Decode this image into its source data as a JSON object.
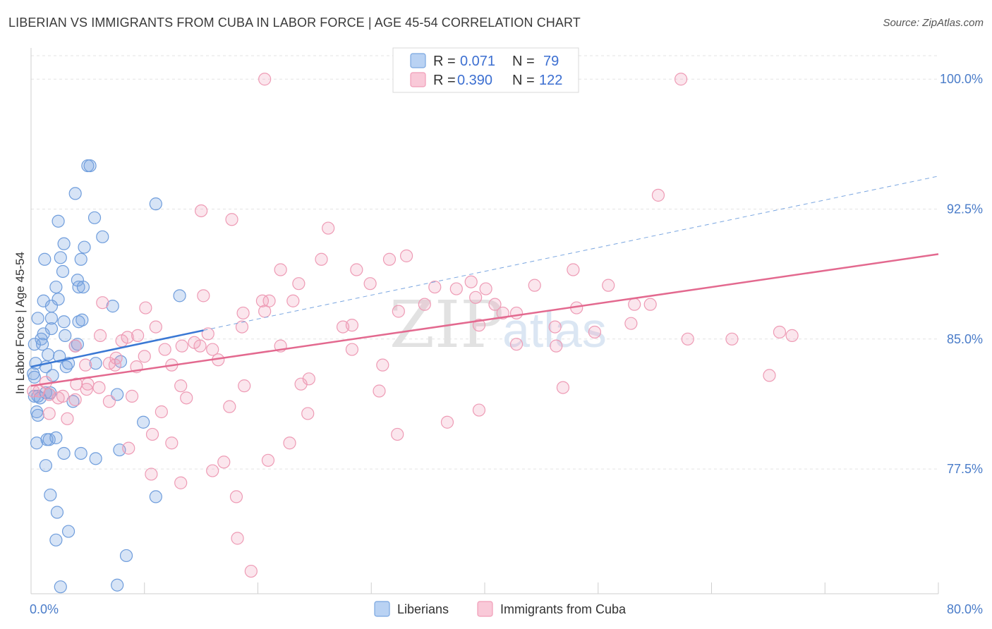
{
  "title": "LIBERIAN VS IMMIGRANTS FROM CUBA IN LABOR FORCE | AGE 45-54 CORRELATION CHART",
  "source": "Source: ZipAtlas.com",
  "watermark": {
    "zip": "ZIP",
    "atlas": "atlas"
  },
  "legend": {
    "series1": {
      "r_label": "R = ",
      "r_value": "0.071",
      "n_label": "N = ",
      "n_value": "79"
    },
    "series2": {
      "r_label": "R = ",
      "r_value": "0.390",
      "n_label": "N = ",
      "n_value": "122"
    }
  },
  "chart_data": {
    "type": "scatter",
    "title": "LIBERIAN VS IMMIGRANTS FROM CUBA IN LABOR FORCE | AGE 45-54 CORRELATION CHART",
    "xlabel": "",
    "ylabel": "In Labor Force | Age 45-54",
    "xlim": [
      0,
      80
    ],
    "ylim": [
      70.3,
      101.8
    ],
    "x_tick_labels": [
      {
        "value": 0,
        "label": "0.0%"
      },
      {
        "value": 80,
        "label": "80.0%"
      }
    ],
    "y_tick_labels": [
      {
        "value": 77.5,
        "label": "77.5%"
      },
      {
        "value": 85.0,
        "label": "85.0%"
      },
      {
        "value": 92.5,
        "label": "92.5%"
      },
      {
        "value": 100.0,
        "label": "100.0%"
      }
    ],
    "grid": true,
    "colors": {
      "Liberians": "#7aa6e0",
      "Immigrants from Cuba": "#f19db8",
      "blue_line": "#3a78d4",
      "pink_line": "#e3698f"
    },
    "series": [
      {
        "name": "Liberians",
        "r": 0.071,
        "n": 79,
        "trend": {
          "x0": 0.0,
          "y0": 83.4,
          "x1": 15.2,
          "y1": 85.5,
          "dashed_to_x": 80,
          "dashed_to_y": 94.4
        },
        "points": [
          [
            5.0,
            95.0
          ],
          [
            5.2,
            95.0
          ],
          [
            3.9,
            93.4
          ],
          [
            11.0,
            92.8
          ],
          [
            2.4,
            91.8
          ],
          [
            5.6,
            92.0
          ],
          [
            6.3,
            90.9
          ],
          [
            2.9,
            90.5
          ],
          [
            4.7,
            90.3
          ],
          [
            1.2,
            89.6
          ],
          [
            2.6,
            89.7
          ],
          [
            4.4,
            89.6
          ],
          [
            2.8,
            88.9
          ],
          [
            4.1,
            88.4
          ],
          [
            2.2,
            88.0
          ],
          [
            4.2,
            88.0
          ],
          [
            4.6,
            88.0
          ],
          [
            13.1,
            87.5
          ],
          [
            0.6,
            86.2
          ],
          [
            1.1,
            87.2
          ],
          [
            2.4,
            87.3
          ],
          [
            1.8,
            86.9
          ],
          [
            7.2,
            86.9
          ],
          [
            2.9,
            86.0
          ],
          [
            4.2,
            86.0
          ],
          [
            4.5,
            86.1
          ],
          [
            1.8,
            86.2
          ],
          [
            1.8,
            85.6
          ],
          [
            1.1,
            85.3
          ],
          [
            0.9,
            85.0
          ],
          [
            1.0,
            84.7
          ],
          [
            0.3,
            84.7
          ],
          [
            3.0,
            85.2
          ],
          [
            3.9,
            84.6
          ],
          [
            4.1,
            84.7
          ],
          [
            0.4,
            83.6
          ],
          [
            1.5,
            84.1
          ],
          [
            2.5,
            84.0
          ],
          [
            1.3,
            83.4
          ],
          [
            3.1,
            83.4
          ],
          [
            3.3,
            83.6
          ],
          [
            5.7,
            83.6
          ],
          [
            7.9,
            83.7
          ],
          [
            0.2,
            83.0
          ],
          [
            0.3,
            82.8
          ],
          [
            1.9,
            82.9
          ],
          [
            0.3,
            81.7
          ],
          [
            0.6,
            81.7
          ],
          [
            0.8,
            81.6
          ],
          [
            1.3,
            81.9
          ],
          [
            1.6,
            81.8
          ],
          [
            1.7,
            81.9
          ],
          [
            3.7,
            81.4
          ],
          [
            7.6,
            81.8
          ],
          [
            0.5,
            80.8
          ],
          [
            0.6,
            80.6
          ],
          [
            9.9,
            80.2
          ],
          [
            1.4,
            79.2
          ],
          [
            1.6,
            79.2
          ],
          [
            2.2,
            79.3
          ],
          [
            0.5,
            79.0
          ],
          [
            2.9,
            78.4
          ],
          [
            4.4,
            78.4
          ],
          [
            5.7,
            78.1
          ],
          [
            7.8,
            78.6
          ],
          [
            1.3,
            77.7
          ],
          [
            1.7,
            76.0
          ],
          [
            11.0,
            75.9
          ],
          [
            2.3,
            75.0
          ],
          [
            3.3,
            73.9
          ],
          [
            2.2,
            73.4
          ],
          [
            8.4,
            72.5
          ],
          [
            2.6,
            70.7
          ],
          [
            7.6,
            70.8
          ]
        ]
      },
      {
        "name": "Immigrants from Cuba",
        "r": 0.39,
        "n": 122,
        "trend": {
          "x0": 0.0,
          "y0": 82.3,
          "x1": 80.0,
          "y1": 89.9
        },
        "points": [
          [
            20.6,
            100.0
          ],
          [
            57.3,
            100.0
          ],
          [
            55.3,
            93.3
          ],
          [
            15.0,
            92.4
          ],
          [
            17.7,
            91.9
          ],
          [
            26.2,
            91.4
          ],
          [
            22.0,
            89.0
          ],
          [
            25.6,
            89.6
          ],
          [
            28.7,
            89.0
          ],
          [
            31.6,
            89.6
          ],
          [
            33.1,
            89.8
          ],
          [
            47.8,
            89.0
          ],
          [
            23.6,
            88.2
          ],
          [
            29.9,
            88.2
          ],
          [
            35.6,
            88.0
          ],
          [
            37.5,
            87.9
          ],
          [
            38.8,
            88.3
          ],
          [
            40.1,
            87.9
          ],
          [
            44.4,
            88.1
          ],
          [
            50.9,
            88.1
          ],
          [
            15.2,
            87.5
          ],
          [
            20.4,
            87.2
          ],
          [
            21.0,
            87.2
          ],
          [
            23.1,
            87.2
          ],
          [
            32.4,
            86.6
          ],
          [
            34.7,
            87.0
          ],
          [
            39.2,
            87.4
          ],
          [
            40.9,
            87.0
          ],
          [
            6.3,
            87.1
          ],
          [
            10.1,
            86.8
          ],
          [
            20.6,
            86.6
          ],
          [
            18.7,
            86.5
          ],
          [
            41.6,
            86.5
          ],
          [
            42.8,
            86.5
          ],
          [
            48.1,
            86.8
          ],
          [
            53.2,
            87.0
          ],
          [
            54.6,
            87.0
          ],
          [
            11.0,
            85.7
          ],
          [
            18.6,
            85.7
          ],
          [
            27.5,
            85.7
          ],
          [
            28.3,
            85.8
          ],
          [
            39.5,
            85.8
          ],
          [
            46.2,
            85.7
          ],
          [
            49.7,
            85.4
          ],
          [
            52.9,
            85.9
          ],
          [
            66.0,
            85.4
          ],
          [
            57.9,
            85.0
          ],
          [
            61.8,
            85.0
          ],
          [
            67.1,
            85.2
          ],
          [
            6.1,
            85.2
          ],
          [
            8.5,
            85.1
          ],
          [
            9.4,
            85.2
          ],
          [
            15.6,
            85.3
          ],
          [
            14.4,
            84.8
          ],
          [
            8.0,
            84.9
          ],
          [
            22.0,
            84.6
          ],
          [
            11.8,
            84.4
          ],
          [
            13.3,
            84.6
          ],
          [
            14.9,
            84.6
          ],
          [
            16.0,
            84.4
          ],
          [
            28.3,
            84.4
          ],
          [
            42.8,
            84.7
          ],
          [
            46.3,
            84.6
          ],
          [
            3.9,
            84.6
          ],
          [
            7.5,
            83.9
          ],
          [
            10.0,
            84.0
          ],
          [
            16.5,
            83.8
          ],
          [
            6.9,
            83.6
          ],
          [
            4.8,
            83.5
          ],
          [
            7.4,
            83.5
          ],
          [
            9.3,
            83.4
          ],
          [
            12.4,
            83.5
          ],
          [
            31.0,
            83.5
          ],
          [
            1.3,
            82.5
          ],
          [
            4.0,
            82.4
          ],
          [
            5.0,
            82.4
          ],
          [
            6.0,
            82.2
          ],
          [
            4.9,
            82.1
          ],
          [
            13.2,
            82.3
          ],
          [
            18.8,
            82.3
          ],
          [
            23.8,
            82.4
          ],
          [
            24.5,
            82.7
          ],
          [
            30.7,
            82.0
          ],
          [
            46.9,
            82.2
          ],
          [
            65.1,
            82.9
          ],
          [
            0.2,
            82.0
          ],
          [
            0.7,
            82.0
          ],
          [
            1.6,
            81.8
          ],
          [
            2.4,
            81.6
          ],
          [
            2.8,
            81.7
          ],
          [
            3.9,
            81.5
          ],
          [
            8.9,
            81.7
          ],
          [
            13.7,
            81.6
          ],
          [
            6.9,
            81.4
          ],
          [
            17.5,
            81.1
          ],
          [
            11.5,
            80.8
          ],
          [
            1.6,
            80.7
          ],
          [
            24.4,
            80.7
          ],
          [
            36.7,
            80.2
          ],
          [
            39.5,
            80.9
          ],
          [
            3.2,
            80.4
          ],
          [
            10.7,
            79.5
          ],
          [
            12.4,
            79.0
          ],
          [
            32.3,
            79.5
          ],
          [
            22.8,
            79.0
          ],
          [
            8.6,
            78.7
          ],
          [
            17.0,
            77.9
          ],
          [
            20.9,
            78.0
          ],
          [
            16.0,
            77.4
          ],
          [
            10.6,
            77.2
          ],
          [
            13.2,
            76.7
          ],
          [
            18.1,
            75.9
          ],
          [
            18.2,
            73.5
          ],
          [
            19.4,
            71.6
          ]
        ]
      }
    ]
  },
  "bottom_legend": {
    "series1": "Liberians",
    "series2": "Immigrants from Cuba"
  }
}
